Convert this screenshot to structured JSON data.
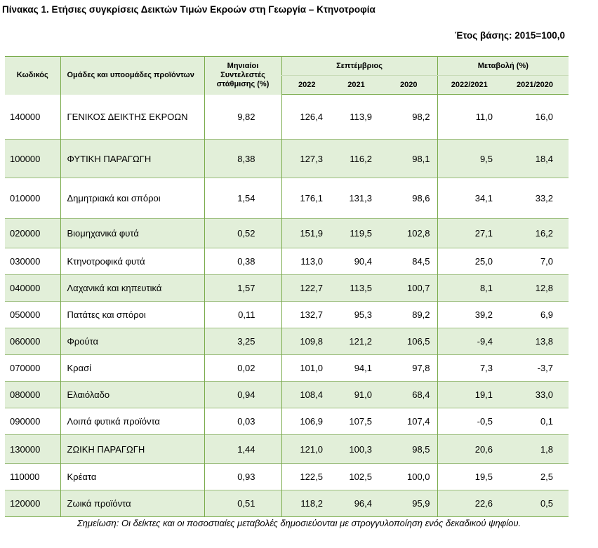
{
  "title": "Πίνακας 1. Ετήσιες συγκρίσεις Δεικτών Τιμών Εκροών στη Γεωργία – Κτηνοτροφία",
  "base_year": "Έτος βάσης: 2015=100,0",
  "headers": {
    "code": "Κωδικός",
    "groups": "Ομάδες και υποομάδες προϊόντων",
    "weights": "Μηνιαίοι Συντελεστές στάθμισης (%)",
    "month": "Σεπτέμβριος",
    "change": "Μεταβολή (%)",
    "y2022": "2022",
    "y2021": "2021",
    "y2020": "2020",
    "ch1": "2022/2021",
    "ch2": "2021/2020"
  },
  "rows": [
    {
      "code": "140000",
      "name": "ΓΕΝΙΚΟΣ ΔΕΙΚΤΗΣ ΕΚΡΟΩΝ",
      "weight": "9,82",
      "v2022": "126,4",
      "v2021": "113,9",
      "v2020": "98,2",
      "ch1": "11,0",
      "ch2": "16,0"
    },
    {
      "code": "100000",
      "name": "ΦΥΤΙΚΗ ΠΑΡΑΓΩΓΗ",
      "weight": "8,38",
      "v2022": "127,3",
      "v2021": "116,2",
      "v2020": "98,1",
      "ch1": "9,5",
      "ch2": "18,4"
    },
    {
      "code": "010000",
      "name": "Δημητριακά και σπόροι",
      "weight": "1,54",
      "v2022": "176,1",
      "v2021": "131,3",
      "v2020": "98,6",
      "ch1": "34,1",
      "ch2": "33,2"
    },
    {
      "code": "020000",
      "name": "Βιομηχανικά φυτά",
      "weight": "0,52",
      "v2022": "151,9",
      "v2021": "119,5",
      "v2020": "102,8",
      "ch1": "27,1",
      "ch2": "16,2"
    },
    {
      "code": "030000",
      "name": "Κτηνοτροφικά φυτά",
      "weight": "0,38",
      "v2022": "113,0",
      "v2021": "90,4",
      "v2020": "84,5",
      "ch1": "25,0",
      "ch2": "7,0"
    },
    {
      "code": "040000",
      "name": "Λαχανικά και κηπευτικά",
      "weight": "1,57",
      "v2022": "122,7",
      "v2021": "113,5",
      "v2020": "100,7",
      "ch1": "8,1",
      "ch2": "12,8"
    },
    {
      "code": "050000",
      "name": "Πατάτες και σπόροι",
      "weight": "0,11",
      "v2022": "132,7",
      "v2021": "95,3",
      "v2020": "89,2",
      "ch1": "39,2",
      "ch2": "6,9"
    },
    {
      "code": "060000",
      "name": "Φρούτα",
      "weight": "3,25",
      "v2022": "109,8",
      "v2021": "121,2",
      "v2020": "106,5",
      "ch1": "-9,4",
      "ch2": "13,8"
    },
    {
      "code": "070000",
      "name": "Κρασί",
      "weight": "0,02",
      "v2022": "101,0",
      "v2021": "94,1",
      "v2020": "97,8",
      "ch1": "7,3",
      "ch2": "-3,7"
    },
    {
      "code": "080000",
      "name": "Ελαιόλαδο",
      "weight": "0,94",
      "v2022": "108,4",
      "v2021": "91,0",
      "v2020": "68,4",
      "ch1": "19,1",
      "ch2": "33,0"
    },
    {
      "code": "090000",
      "name": "Λοιπά φυτικά προϊόντα",
      "weight": "0,03",
      "v2022": "106,9",
      "v2021": "107,5",
      "v2020": "107,4",
      "ch1": "-0,5",
      "ch2": "0,1"
    },
    {
      "code": "130000",
      "name": "ΖΩΙΚΗ ΠΑΡΑΓΩΓΗ",
      "weight": "1,44",
      "v2022": "121,0",
      "v2021": "100,3",
      "v2020": "98,5",
      "ch1": "20,6",
      "ch2": "1,8"
    },
    {
      "code": "110000",
      "name": "Κρέατα",
      "weight": "0,93",
      "v2022": "122,5",
      "v2021": "102,5",
      "v2020": "100,0",
      "ch1": "19,5",
      "ch2": "2,5"
    },
    {
      "code": "120000",
      "name": "Ζωικά προϊόντα",
      "weight": "0,51",
      "v2022": "118,2",
      "v2021": "96,4",
      "v2020": "95,9",
      "ch1": "22,6",
      "ch2": "0,5"
    }
  ],
  "note": "Σημείωση: Οι δείκτες και οι ποσοστιαίες μεταβολές δημοσιεύονται με στρογγυλοποίηση ενός δεκαδικού ψηφίου."
}
